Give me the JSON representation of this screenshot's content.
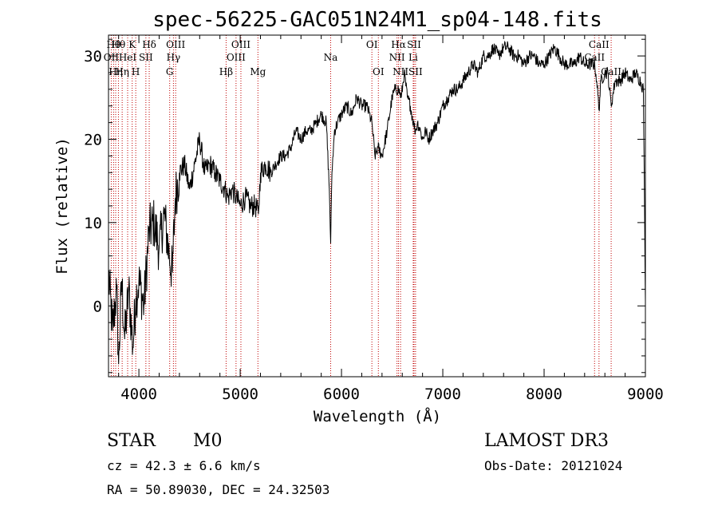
{
  "chart_data": {
    "type": "line",
    "title": "spec-56225-GAC051N24M1_sp04-148.fits",
    "xlabel": "Wavelength (Å)",
    "ylabel": "Flux (relative)",
    "xlim": [
      3700,
      9000
    ],
    "ylim": [
      -8.5,
      32.5
    ],
    "xticks": [
      4000,
      5000,
      6000,
      7000,
      8000,
      9000
    ],
    "yticks": [
      0,
      10,
      20,
      30
    ],
    "series": [
      {
        "name": "spectrum",
        "x": [
          3700,
          3740,
          3780,
          3800,
          3830,
          3860,
          3900,
          3940,
          3970,
          4000,
          4050,
          4100,
          4150,
          4200,
          4250,
          4300,
          4330,
          4360,
          4400,
          4450,
          4500,
          4550,
          4600,
          4650,
          4700,
          4750,
          4800,
          4850,
          4880,
          4920,
          4960,
          5000,
          5050,
          5100,
          5150,
          5180,
          5200,
          5250,
          5300,
          5350,
          5400,
          5450,
          5500,
          5550,
          5600,
          5650,
          5700,
          5750,
          5800,
          5850,
          5880,
          5893,
          5906,
          5930,
          5960,
          6000,
          6050,
          6100,
          6150,
          6200,
          6250,
          6300,
          6330,
          6360,
          6400,
          6450,
          6500,
          6530,
          6563,
          6590,
          6620,
          6650,
          6680,
          6710,
          6730,
          6750,
          6780,
          6800,
          6830,
          6860,
          6900,
          6950,
          7000,
          7050,
          7100,
          7150,
          7200,
          7250,
          7300,
          7350,
          7400,
          7450,
          7500,
          7550,
          7600,
          7650,
          7700,
          7750,
          7800,
          7850,
          7900,
          7950,
          8000,
          8050,
          8100,
          8150,
          8200,
          8250,
          8300,
          8350,
          8400,
          8450,
          8500,
          8520,
          8542,
          8560,
          8600,
          8630,
          8662,
          8700,
          8750,
          8800,
          8850,
          8900,
          8950,
          8980,
          9000
        ],
        "values": [
          4,
          -3,
          2,
          -7,
          3,
          -4,
          2,
          -5,
          1,
          3,
          0,
          9,
          10,
          7,
          11,
          6,
          4,
          13,
          16,
          17,
          14,
          17,
          20,
          16,
          17,
          16,
          15,
          14,
          13,
          14,
          13,
          12,
          13,
          12,
          12,
          11,
          16,
          17,
          16,
          17,
          18,
          18,
          19,
          21,
          20,
          21,
          21,
          22,
          23,
          22,
          14,
          7.5,
          16,
          21,
          22,
          23,
          24,
          23,
          25,
          24,
          24,
          22,
          18,
          19,
          18,
          21,
          25,
          26,
          26,
          25,
          28,
          25,
          24,
          22,
          21,
          22,
          21,
          20,
          21,
          20,
          21,
          22,
          24,
          25,
          26,
          26,
          27,
          28,
          29,
          28,
          30,
          30,
          31,
          30,
          31,
          31,
          30,
          30,
          29,
          30,
          30,
          29,
          29,
          30,
          31,
          30,
          29,
          29,
          29,
          30,
          29,
          29,
          29,
          27,
          23.5,
          27,
          28,
          28,
          24,
          27,
          27,
          28,
          27,
          28,
          27,
          26,
          0.5
        ]
      }
    ],
    "line_markers": [
      {
        "w": 3727,
        "label": "OII",
        "row": 2
      },
      {
        "w": 3750,
        "label": "Hθ",
        "row": 1
      },
      {
        "w": 3771,
        "label": "Hη",
        "row": 3
      },
      {
        "w": 3798,
        "label": "Hθ",
        "row": 1
      },
      {
        "w": 3835,
        "label": "Hη",
        "row": 3
      },
      {
        "w": 3889,
        "label": "HeI",
        "row": 2
      },
      {
        "w": 3934,
        "label": "K",
        "row": 1
      },
      {
        "w": 3969,
        "label": "H",
        "row": 3
      },
      {
        "w": 4069,
        "label": "SII",
        "row": 2
      },
      {
        "w": 4102,
        "label": "Hδ",
        "row": 1
      },
      {
        "w": 4304,
        "label": "G",
        "row": 3
      },
      {
        "w": 4341,
        "label": "Hγ",
        "row": 2
      },
      {
        "w": 4363,
        "label": "OIII",
        "row": 1
      },
      {
        "w": 4861,
        "label": "Hβ",
        "row": 3
      },
      {
        "w": 4959,
        "label": "OIII",
        "row": 2
      },
      {
        "w": 5007,
        "label": "OIII",
        "row": 1
      },
      {
        "w": 5175,
        "label": "Mg",
        "row": 3
      },
      {
        "w": 5893,
        "label": "Na",
        "row": 2
      },
      {
        "w": 6300,
        "label": "OI",
        "row": 1
      },
      {
        "w": 6364,
        "label": "OI",
        "row": 3
      },
      {
        "w": 6548,
        "label": "NII",
        "row": 2
      },
      {
        "w": 6563,
        "label": "Hα",
        "row": 1
      },
      {
        "w": 6583,
        "label": "NII",
        "row": 3
      },
      {
        "w": 6708,
        "label": "Li",
        "row": 2
      },
      {
        "w": 6716,
        "label": "SII",
        "row": 1
      },
      {
        "w": 6731,
        "label": "SII",
        "row": 3
      },
      {
        "w": 8498,
        "label": "CaII",
        "row": 2
      },
      {
        "w": 8542,
        "label": "CaII",
        "row": 1
      },
      {
        "w": 8662,
        "label": "CaII",
        "row": 3
      }
    ],
    "grid": false,
    "legend": "none"
  },
  "info": {
    "object_class": "STAR",
    "subclass": "M0",
    "survey": "LAMOST DR3",
    "redshift": "cz = 42.3 ± 6.6 km/s",
    "obs_date": "Obs-Date: 20121024",
    "coords": "RA =  50.89030, DEC =  24.32503"
  },
  "colors": {
    "line": "#000000",
    "marker": "#c00000",
    "background": "#ffffff"
  }
}
